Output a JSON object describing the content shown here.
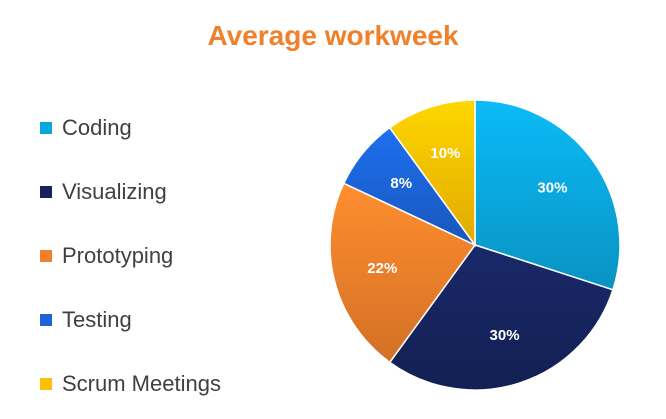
{
  "chart_data": {
    "type": "pie",
    "title": "Average workweek",
    "title_color": "#F0802A",
    "categories": [
      "Coding",
      "Visualizing",
      "Prototyping",
      "Testing",
      "Scrum Meetings"
    ],
    "values": [
      30,
      30,
      22,
      8,
      10
    ],
    "value_labels": [
      "30%",
      "30%",
      "22%",
      "8%",
      "10%"
    ],
    "colors": [
      "#0AA7DD",
      "#16245E",
      "#F07F2A",
      "#1B63D6",
      "#FFC000"
    ],
    "legend_position": "left",
    "start_angle_degrees": 0,
    "direction": "clockwise"
  }
}
